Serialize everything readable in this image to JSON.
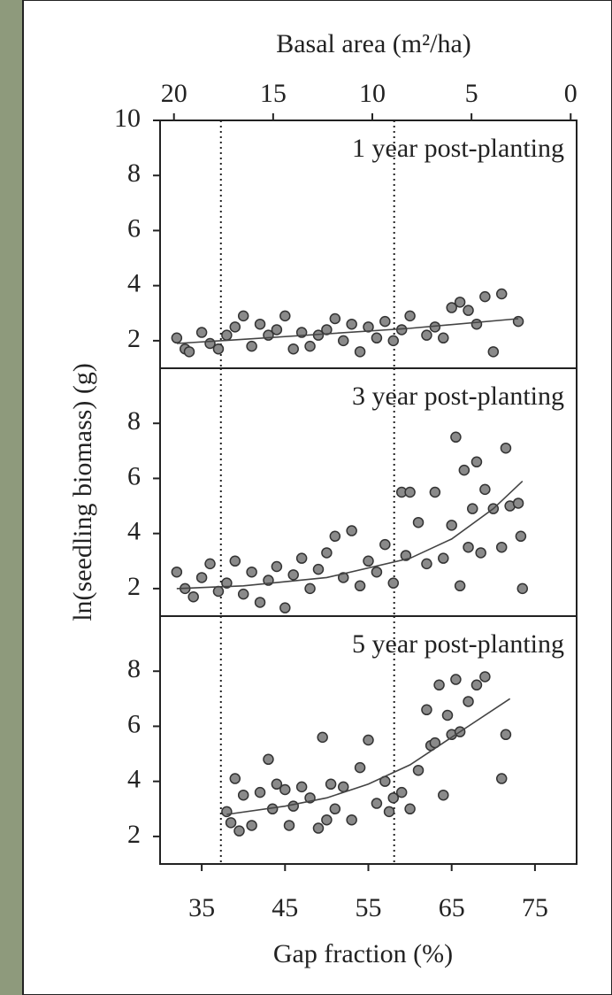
{
  "chart_data": [
    {
      "type": "scatter",
      "title": "1 year post-planting",
      "x2label": "Basal area (m²/ha)",
      "x2lim": [
        20.7,
        -0.3
      ],
      "x2ticks": [
        20,
        15,
        10,
        5,
        0
      ],
      "xlim": [
        30,
        80
      ],
      "ylim": [
        1,
        10
      ],
      "yticks": [
        2,
        4,
        6,
        8,
        10
      ],
      "vlines": [
        37.3,
        58.1
      ],
      "color": "#8a8a8a",
      "fit_color": "#444444",
      "x": [
        32,
        33,
        33.5,
        35,
        36,
        37,
        38,
        39,
        40,
        41,
        42,
        43,
        44,
        45,
        46,
        47,
        48,
        49,
        50,
        51,
        52,
        53,
        54,
        55,
        56,
        57,
        58,
        59,
        60,
        62,
        63,
        64,
        65,
        66,
        67,
        68,
        69,
        70,
        71,
        73
      ],
      "y": [
        2.1,
        1.7,
        1.6,
        2.3,
        1.9,
        1.7,
        2.2,
        2.5,
        2.9,
        1.8,
        2.6,
        2.2,
        2.4,
        2.9,
        1.7,
        2.3,
        1.8,
        2.2,
        2.4,
        2.8,
        2.0,
        2.6,
        1.6,
        2.5,
        2.1,
        2.7,
        2.0,
        2.4,
        2.9,
        2.2,
        2.5,
        2.1,
        3.2,
        3.4,
        3.1,
        2.6,
        3.6,
        1.6,
        3.7,
        2.7
      ],
      "fit": {
        "x": [
          32,
          40,
          50,
          60,
          73
        ],
        "y": [
          1.9,
          2.05,
          2.25,
          2.45,
          2.8
        ]
      }
    },
    {
      "type": "scatter",
      "title": "3 year post-planting",
      "ylabel": "ln(seedling biomass) (g)",
      "xlim": [
        30,
        80
      ],
      "ylim": [
        1,
        10
      ],
      "yticks": [
        2,
        4,
        6,
        8
      ],
      "vlines": [
        37.3,
        58.1
      ],
      "color": "#8a8a8a",
      "fit_color": "#444444",
      "x": [
        32,
        33,
        34,
        35,
        36,
        37,
        38,
        39,
        40,
        41,
        42,
        43,
        44,
        45,
        46,
        47,
        48,
        49,
        50,
        51,
        52,
        53,
        54,
        55,
        56,
        57,
        58,
        59,
        59.5,
        60,
        61,
        62,
        63,
        64,
        65,
        65.5,
        66,
        66.5,
        67,
        67.5,
        68,
        68.5,
        69,
        70,
        71,
        71.5,
        72,
        73,
        73.3,
        73.5
      ],
      "y": [
        2.6,
        2.0,
        1.7,
        2.4,
        2.9,
        1.9,
        2.2,
        3.0,
        1.8,
        2.6,
        1.5,
        2.3,
        2.8,
        1.3,
        2.5,
        3.1,
        2.0,
        2.7,
        3.3,
        3.9,
        2.4,
        4.1,
        2.1,
        3.0,
        2.6,
        3.6,
        2.2,
        5.5,
        3.2,
        5.5,
        4.4,
        2.9,
        5.5,
        3.1,
        4.3,
        7.5,
        2.1,
        6.3,
        3.5,
        4.9,
        6.6,
        3.3,
        5.6,
        4.9,
        3.5,
        7.1,
        5.0,
        5.1,
        3.9,
        2.0
      ],
      "fit": {
        "x": [
          32,
          40,
          50,
          60,
          65,
          70,
          73.5
        ],
        "y": [
          2.0,
          2.1,
          2.4,
          3.1,
          3.8,
          4.9,
          5.9
        ]
      }
    },
    {
      "type": "scatter",
      "title": "5 year post-planting",
      "xlabel": "Gap fraction (%)",
      "xlim": [
        30,
        80
      ],
      "xticks": [
        35,
        45,
        55,
        65,
        75
      ],
      "ylim": [
        1,
        10
      ],
      "yticks": [
        2,
        4,
        6,
        8
      ],
      "vlines": [
        37.3,
        58.1
      ],
      "color": "#8a8a8a",
      "fit_color": "#444444",
      "x": [
        38,
        38.5,
        39,
        39.5,
        40,
        41,
        42,
        43,
        43.5,
        44,
        45,
        45.5,
        46,
        47,
        48,
        49,
        49.5,
        50,
        50.5,
        51,
        52,
        53,
        54,
        55,
        56,
        57,
        57.5,
        58,
        59,
        60,
        61,
        62,
        62.5,
        63,
        63.5,
        64,
        64.5,
        65,
        65.5,
        66,
        67,
        68,
        69,
        71,
        71.5
      ],
      "y": [
        2.9,
        2.5,
        4.1,
        2.2,
        3.5,
        2.4,
        3.6,
        4.8,
        3.0,
        3.9,
        3.7,
        2.4,
        3.1,
        3.8,
        3.4,
        2.3,
        5.6,
        2.6,
        3.9,
        3.0,
        3.8,
        2.6,
        4.5,
        5.5,
        3.2,
        4.0,
        2.9,
        3.4,
        3.6,
        3.0,
        4.4,
        6.6,
        5.3,
        5.4,
        7.5,
        3.5,
        6.4,
        5.7,
        7.7,
        5.8,
        6.9,
        7.5,
        7.8,
        4.1,
        5.7
      ],
      "fit": {
        "x": [
          38,
          45,
          50,
          55,
          60,
          65,
          72
        ],
        "y": [
          2.8,
          3.1,
          3.4,
          3.9,
          4.6,
          5.6,
          7.0
        ]
      }
    }
  ]
}
